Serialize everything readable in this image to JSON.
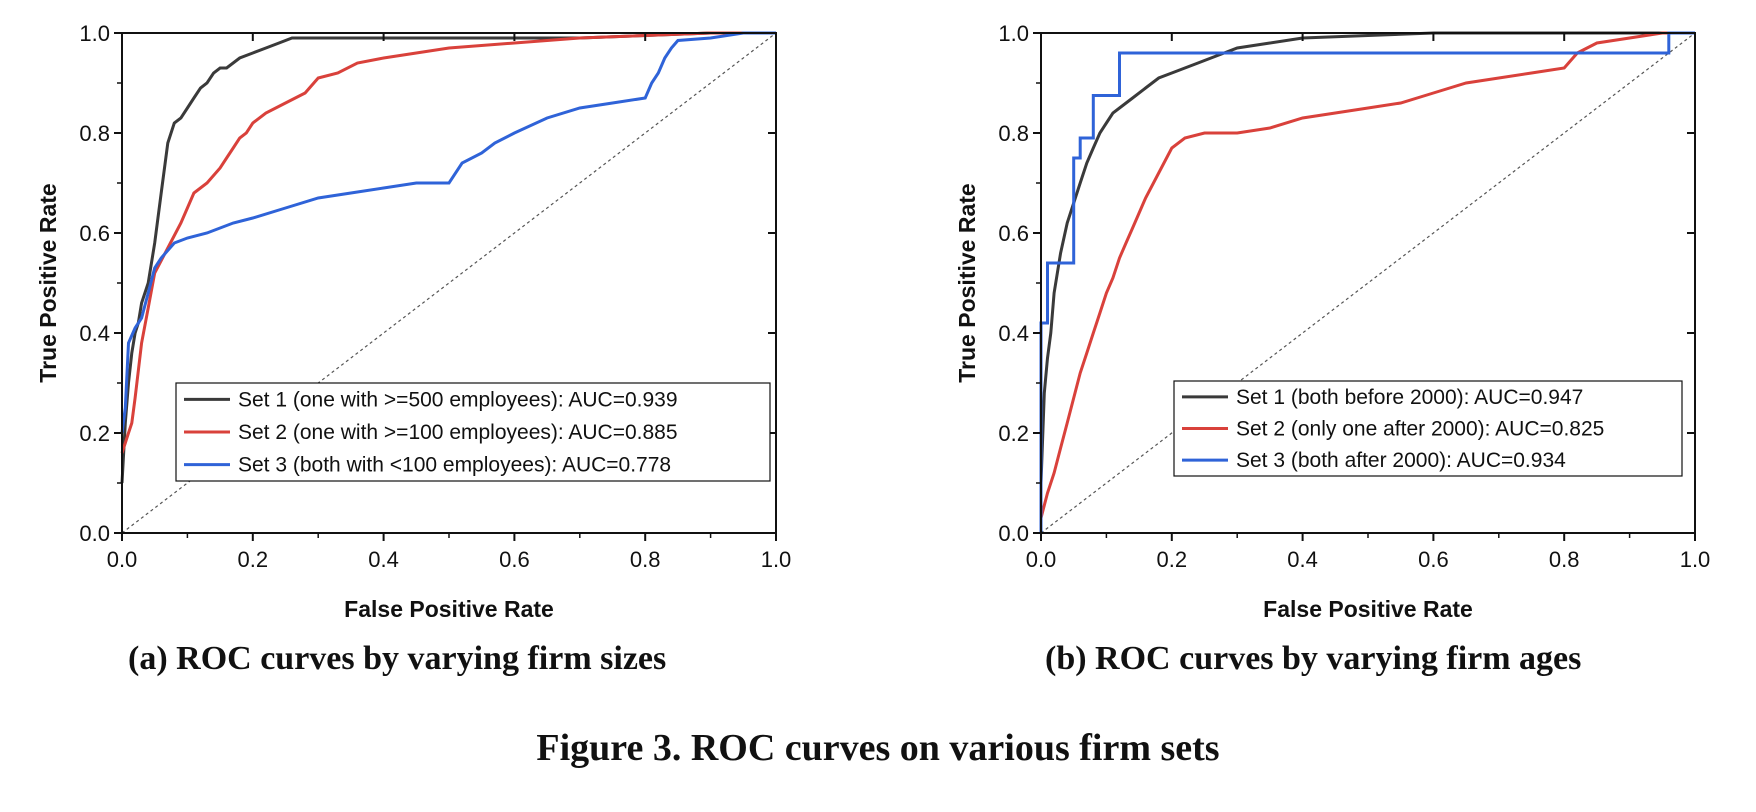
{
  "figure": {
    "caption": "Figure 3. ROC curves on various firm sets",
    "colors": {
      "set1": "#3a3a3a",
      "set2": "#d9413b",
      "set3": "#2f63d8",
      "diagonal": "#555555"
    }
  },
  "chart_data": [
    {
      "type": "line",
      "subcaption": "(a) ROC curves by varying firm sizes",
      "xlabel": "False Positive Rate",
      "ylabel": "True Positive Rate",
      "xlim": [
        0,
        1
      ],
      "ylim": [
        0,
        1
      ],
      "xticks": [
        "0.0",
        "0.2",
        "0.4",
        "0.6",
        "0.8",
        "1.0"
      ],
      "yticks": [
        "0.0",
        "0.2",
        "0.4",
        "0.6",
        "0.8",
        "1.0"
      ],
      "grid": false,
      "legend_position": "lower-right",
      "diagonal_reference": true,
      "series": [
        {
          "name": "Set 1 (one with >=500 employees): AUC=0.939",
          "color": "#3a3a3a",
          "x": [
            0,
            0.005,
            0.01,
            0.015,
            0.02,
            0.025,
            0.03,
            0.04,
            0.05,
            0.06,
            0.07,
            0.08,
            0.09,
            0.1,
            0.11,
            0.12,
            0.13,
            0.14,
            0.15,
            0.16,
            0.18,
            0.2,
            0.22,
            0.24,
            0.26,
            0.28,
            0.3,
            0.4,
            0.5,
            0.6,
            0.7,
            0.8,
            0.9,
            1.0
          ],
          "y": [
            0.1,
            0.22,
            0.3,
            0.36,
            0.4,
            0.42,
            0.46,
            0.5,
            0.58,
            0.68,
            0.78,
            0.82,
            0.83,
            0.85,
            0.87,
            0.89,
            0.9,
            0.92,
            0.93,
            0.93,
            0.95,
            0.96,
            0.97,
            0.98,
            0.99,
            0.99,
            0.99,
            0.99,
            0.99,
            0.99,
            0.99,
            0.995,
            1.0,
            1.0
          ]
        },
        {
          "name": "Set 2 (one with >=100 employees): AUC=0.885",
          "color": "#d9413b",
          "x": [
            0,
            0.005,
            0.01,
            0.015,
            0.02,
            0.03,
            0.04,
            0.05,
            0.07,
            0.09,
            0.1,
            0.11,
            0.13,
            0.15,
            0.16,
            0.17,
            0.18,
            0.19,
            0.2,
            0.22,
            0.25,
            0.28,
            0.3,
            0.33,
            0.36,
            0.4,
            0.45,
            0.5,
            0.6,
            0.7,
            0.8,
            0.9,
            1.0
          ],
          "y": [
            0.16,
            0.18,
            0.2,
            0.22,
            0.27,
            0.38,
            0.45,
            0.52,
            0.57,
            0.62,
            0.65,
            0.68,
            0.7,
            0.73,
            0.75,
            0.77,
            0.79,
            0.8,
            0.82,
            0.84,
            0.86,
            0.88,
            0.91,
            0.92,
            0.94,
            0.95,
            0.96,
            0.97,
            0.98,
            0.99,
            0.995,
            1.0,
            1.0
          ]
        },
        {
          "name": "Set 3 (both with <100 employees): AUC=0.778",
          "color": "#2f63d8",
          "x": [
            0,
            0.005,
            0.01,
            0.02,
            0.03,
            0.04,
            0.05,
            0.06,
            0.08,
            0.1,
            0.13,
            0.17,
            0.2,
            0.25,
            0.3,
            0.35,
            0.4,
            0.45,
            0.5,
            0.52,
            0.55,
            0.57,
            0.6,
            0.65,
            0.7,
            0.75,
            0.8,
            0.81,
            0.82,
            0.83,
            0.84,
            0.85,
            0.9,
            0.95,
            1.0
          ],
          "y": [
            0.2,
            0.25,
            0.38,
            0.41,
            0.43,
            0.48,
            0.53,
            0.55,
            0.58,
            0.59,
            0.6,
            0.62,
            0.63,
            0.65,
            0.67,
            0.68,
            0.69,
            0.7,
            0.7,
            0.74,
            0.76,
            0.78,
            0.8,
            0.83,
            0.85,
            0.86,
            0.87,
            0.9,
            0.92,
            0.95,
            0.97,
            0.985,
            0.99,
            1.0,
            1.0
          ]
        }
      ]
    },
    {
      "type": "line",
      "subcaption": "(b) ROC curves by varying firm ages",
      "xlabel": "False Positive Rate",
      "ylabel": "True Positive Rate",
      "xlim": [
        0,
        1
      ],
      "ylim": [
        0,
        1
      ],
      "xticks": [
        "0.0",
        "0.2",
        "0.4",
        "0.6",
        "0.8",
        "1.0"
      ],
      "yticks": [
        "0.0",
        "0.2",
        "0.4",
        "0.6",
        "0.8",
        "1.0"
      ],
      "grid": false,
      "legend_position": "center-right",
      "diagonal_reference": true,
      "series": [
        {
          "name": "Set 1 (both before 2000): AUC=0.947",
          "color": "#3a3a3a",
          "x": [
            0,
            0.005,
            0.01,
            0.015,
            0.02,
            0.03,
            0.04,
            0.05,
            0.06,
            0.07,
            0.08,
            0.09,
            0.1,
            0.11,
            0.12,
            0.14,
            0.16,
            0.18,
            0.2,
            0.22,
            0.24,
            0.26,
            0.28,
            0.3,
            0.35,
            0.4,
            0.5,
            0.6,
            0.7,
            0.8,
            0.9,
            1.0
          ],
          "y": [
            0.1,
            0.28,
            0.35,
            0.4,
            0.48,
            0.56,
            0.62,
            0.66,
            0.7,
            0.74,
            0.77,
            0.8,
            0.82,
            0.84,
            0.85,
            0.87,
            0.89,
            0.91,
            0.92,
            0.93,
            0.94,
            0.95,
            0.96,
            0.97,
            0.98,
            0.99,
            0.995,
            1.0,
            1.0,
            1.0,
            1.0,
            1.0
          ]
        },
        {
          "name": "Set 2 (only one after 2000): AUC=0.825",
          "color": "#d9413b",
          "x": [
            0,
            0.01,
            0.02,
            0.03,
            0.04,
            0.05,
            0.06,
            0.07,
            0.08,
            0.09,
            0.1,
            0.11,
            0.12,
            0.13,
            0.14,
            0.15,
            0.16,
            0.18,
            0.2,
            0.22,
            0.25,
            0.3,
            0.35,
            0.4,
            0.45,
            0.5,
            0.55,
            0.6,
            0.65,
            0.7,
            0.75,
            0.8,
            0.82,
            0.85,
            0.9,
            0.95,
            1.0
          ],
          "y": [
            0.03,
            0.08,
            0.12,
            0.17,
            0.22,
            0.27,
            0.32,
            0.36,
            0.4,
            0.44,
            0.48,
            0.51,
            0.55,
            0.58,
            0.61,
            0.64,
            0.67,
            0.72,
            0.77,
            0.79,
            0.8,
            0.8,
            0.81,
            0.83,
            0.84,
            0.85,
            0.86,
            0.88,
            0.9,
            0.91,
            0.92,
            0.93,
            0.96,
            0.98,
            0.99,
            1.0,
            1.0
          ]
        },
        {
          "name": "Set 3 (both after 2000): AUC=0.934",
          "color": "#2f63d8",
          "x": [
            0,
            0,
            0.01,
            0.01,
            0.02,
            0.02,
            0.05,
            0.05,
            0.06,
            0.06,
            0.07,
            0.07,
            0.08,
            0.08,
            0.09,
            0.09,
            0.12,
            0.12,
            0.96,
            0.96,
            1.0
          ],
          "y": [
            0,
            0.42,
            0.42,
            0.54,
            0.54,
            0.54,
            0.54,
            0.75,
            0.75,
            0.79,
            0.79,
            0.79,
            0.79,
            0.875,
            0.875,
            0.875,
            0.875,
            0.96,
            0.96,
            1.0,
            1.0
          ]
        }
      ]
    }
  ]
}
